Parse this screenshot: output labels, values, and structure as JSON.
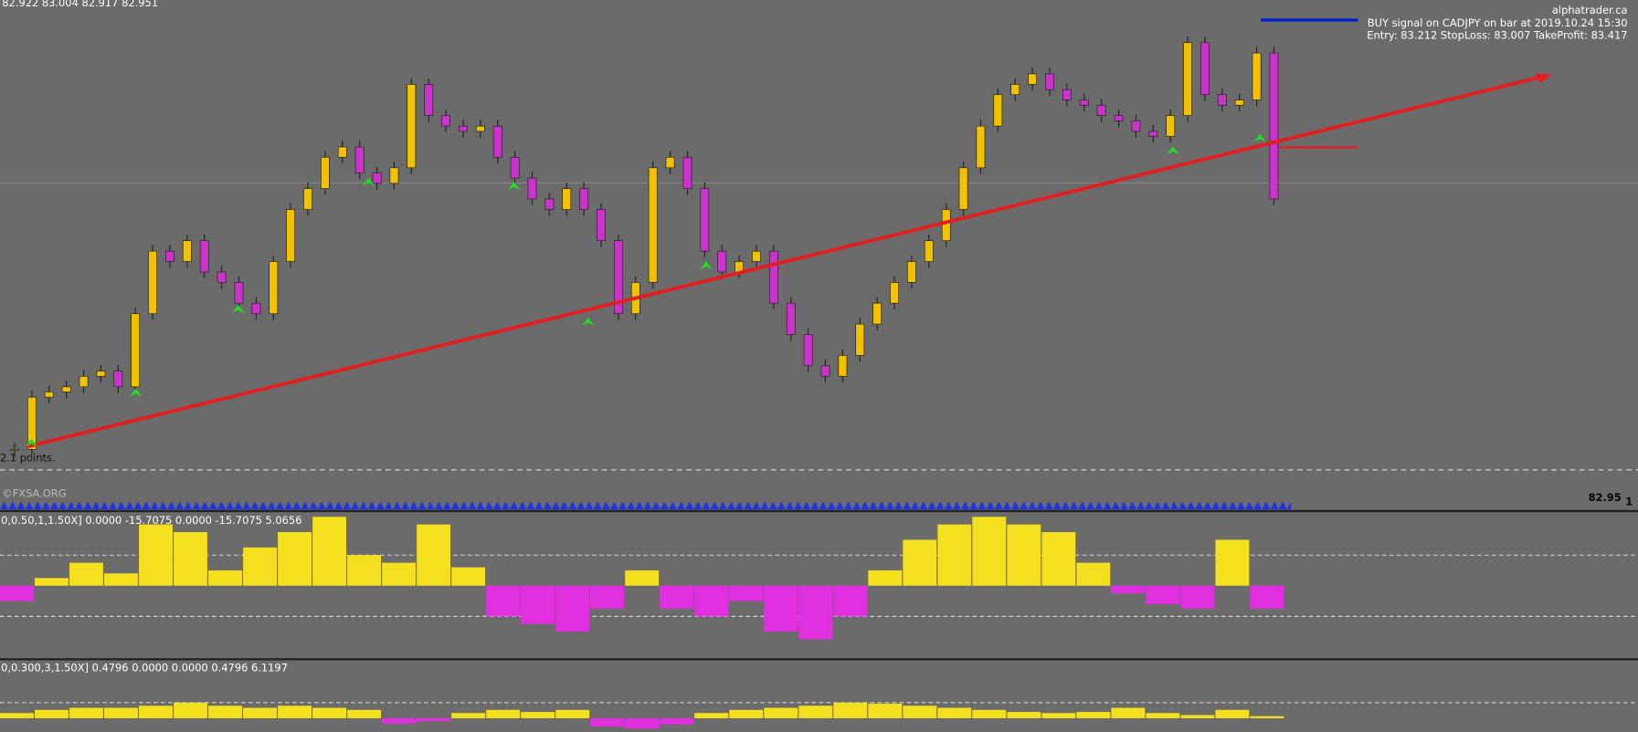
{
  "header": {
    "ohlc": "82.922 83.004 82.917 82.951",
    "site": "alphatrader.ca",
    "signal": "BUY signal on CADJPY on bar at 2019.10.24 15:30",
    "levels": "Entry: 83.212 StopLoss: 83.007 TakeProfit: 83.417"
  },
  "main_panel": {
    "points_label": "2.1 points.",
    "watermark": "©FXSA.ORG",
    "price": "82.95",
    "price_digit": "1",
    "ylim": [
      81.56,
      83.97
    ],
    "closes": [
      81.665,
      81.933,
      81.96,
      81.986,
      82.04,
      82.067,
      81.986,
      82.361,
      82.682,
      82.629,
      82.736,
      82.575,
      82.522,
      82.415,
      82.361,
      82.629,
      82.896,
      83.003,
      83.164,
      83.217,
      83.083,
      83.03,
      83.11,
      83.538,
      83.378,
      83.324,
      83.297,
      83.324,
      83.164,
      83.057,
      82.95,
      82.896,
      83.003,
      82.896,
      82.736,
      82.361,
      82.522,
      83.11,
      83.164,
      83.003,
      82.682,
      82.575,
      82.629,
      82.682,
      82.415,
      82.254,
      82.094,
      82.04,
      82.147,
      82.308,
      82.415,
      82.522,
      82.629,
      82.736,
      82.896,
      83.11,
      83.324,
      83.485,
      83.538,
      83.592,
      83.511,
      83.458,
      83.431,
      83.378,
      83.351,
      83.297,
      83.271,
      83.378,
      83.752,
      83.485,
      83.431,
      83.458,
      83.699,
      82.95
    ]
  },
  "oscillator_1": {
    "label": "0,0.50,1,1.50X] 0.0000 -15.7075 0.0000 -15.7075 5.0656",
    "ylim": [
      -45,
      45
    ],
    "levels": [
      -20,
      20
    ],
    "values": [
      -10,
      5,
      15,
      8,
      40,
      35,
      10,
      25,
      35,
      45,
      20,
      15,
      40,
      12,
      -20,
      -25,
      -30,
      -15,
      10,
      -15,
      -20,
      -10,
      -30,
      -35,
      -20,
      10,
      30,
      40,
      45,
      40,
      35,
      15,
      -5,
      -12,
      -15,
      30,
      -15
    ]
  },
  "oscillator_2": {
    "label": "0,0.300,3,1.50X] 0.4796 0.0000 0.0000 0.4796 6.1197",
    "ylim": [
      -12,
      40
    ],
    "levels": [
      15
    ],
    "values": [
      5,
      8,
      10,
      10,
      12,
      15,
      12,
      10,
      12,
      10,
      8,
      -5,
      -3,
      5,
      8,
      6,
      8,
      -8,
      -10,
      -6,
      5,
      8,
      10,
      12,
      15,
      14,
      12,
      10,
      8,
      6,
      5,
      6,
      10,
      5,
      3,
      8,
      2
    ]
  }
}
